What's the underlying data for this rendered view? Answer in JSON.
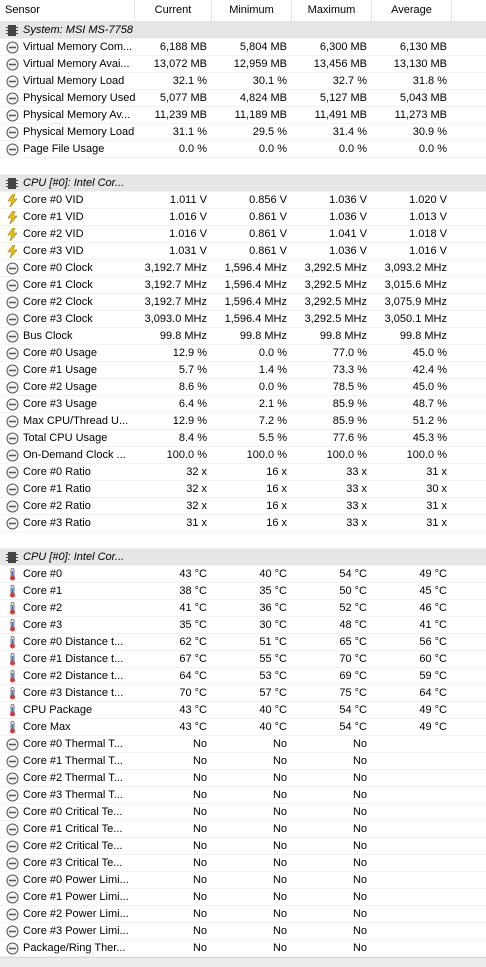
{
  "table": {
    "columns": [
      "Sensor",
      "Current",
      "Minimum",
      "Maximum",
      "Average"
    ],
    "sections": [
      {
        "title": "System: MSI MS-7758",
        "rows": [
          [
            "Virtual Memory Com...",
            "6,188 MB",
            "5,804 MB",
            "6,300 MB",
            "6,130 MB"
          ],
          [
            "Virtual Memory Avai...",
            "13,072 MB",
            "12,959 MB",
            "13,456 MB",
            "13,130 MB"
          ],
          [
            "Virtual Memory Load",
            "32.1 %",
            "30.1 %",
            "32.7 %",
            "31.8 %"
          ],
          [
            "Physical Memory Used",
            "5,077 MB",
            "4,824 MB",
            "5,127 MB",
            "5,043 MB"
          ],
          [
            "Physical Memory Av...",
            "11,239 MB",
            "11,189 MB",
            "11,491 MB",
            "11,273 MB"
          ],
          [
            "Physical Memory Load",
            "31.1 %",
            "29.5 %",
            "31.4 %",
            "30.9 %"
          ],
          [
            "Page File Usage",
            "0.0 %",
            "0.0 %",
            "0.0 %",
            "0.0 %"
          ]
        ]
      },
      {
        "title": "CPU [#0]: Intel Cor...",
        "rows": [
          [
            "Core #0 VID",
            "1.011 V",
            "0.856 V",
            "1.036 V",
            "1.020 V"
          ],
          [
            "Core #1 VID",
            "1.016 V",
            "0.861 V",
            "1.036 V",
            "1.013 V"
          ],
          [
            "Core #2 VID",
            "1.016 V",
            "0.861 V",
            "1.041 V",
            "1.018 V"
          ],
          [
            "Core #3 VID",
            "1.031 V",
            "0.861 V",
            "1.036 V",
            "1.016 V"
          ],
          [
            "Core #0 Clock",
            "3,192.7 MHz",
            "1,596.4 MHz",
            "3,292.5 MHz",
            "3,093.2 MHz"
          ],
          [
            "Core #1 Clock",
            "3,192.7 MHz",
            "1,596.4 MHz",
            "3,292.5 MHz",
            "3,015.6 MHz"
          ],
          [
            "Core #2 Clock",
            "3,192.7 MHz",
            "1,596.4 MHz",
            "3,292.5 MHz",
            "3,075.9 MHz"
          ],
          [
            "Core #3 Clock",
            "3,093.0 MHz",
            "1,596.4 MHz",
            "3,292.5 MHz",
            "3,050.1 MHz"
          ],
          [
            "Bus Clock",
            "99.8 MHz",
            "99.8 MHz",
            "99.8 MHz",
            "99.8 MHz"
          ],
          [
            "Core #0 Usage",
            "12.9 %",
            "0.0 %",
            "77.0 %",
            "45.0 %"
          ],
          [
            "Core #1 Usage",
            "5.7 %",
            "1.4 %",
            "73.3 %",
            "42.4 %"
          ],
          [
            "Core #2 Usage",
            "8.6 %",
            "0.0 %",
            "78.5 %",
            "45.0 %"
          ],
          [
            "Core #3 Usage",
            "6.4 %",
            "2.1 %",
            "85.9 %",
            "48.7 %"
          ],
          [
            "Max CPU/Thread U...",
            "12.9 %",
            "7.2 %",
            "85.9 %",
            "51.2 %"
          ],
          [
            "Total CPU Usage",
            "8.4 %",
            "5.5 %",
            "77.6 %",
            "45.3 %"
          ],
          [
            "On-Demand Clock ...",
            "100.0 %",
            "100.0 %",
            "100.0 %",
            "100.0 %"
          ],
          [
            "Core #0 Ratio",
            "32 x",
            "16 x",
            "33 x",
            "31 x"
          ],
          [
            "Core #1 Ratio",
            "32 x",
            "16 x",
            "33 x",
            "30 x"
          ],
          [
            "Core #2 Ratio",
            "32 x",
            "16 x",
            "33 x",
            "31 x"
          ],
          [
            "Core #3 Ratio",
            "31 x",
            "16 x",
            "33 x",
            "31 x"
          ]
        ]
      },
      {
        "title": "CPU [#0]: Intel Cor...",
        "rows": [
          [
            "Core #0",
            "43 °C",
            "40 °C",
            "54 °C",
            "49 °C"
          ],
          [
            "Core #1",
            "38 °C",
            "35 °C",
            "50 °C",
            "45 °C"
          ],
          [
            "Core #2",
            "41 °C",
            "36 °C",
            "52 °C",
            "46 °C"
          ],
          [
            "Core #3",
            "35 °C",
            "30 °C",
            "48 °C",
            "41 °C"
          ],
          [
            "Core #0 Distance t...",
            "62 °C",
            "51 °C",
            "65 °C",
            "56 °C"
          ],
          [
            "Core #1 Distance t...",
            "67 °C",
            "55 °C",
            "70 °C",
            "60 °C"
          ],
          [
            "Core #2 Distance t...",
            "64 °C",
            "53 °C",
            "69 °C",
            "59 °C"
          ],
          [
            "Core #3 Distance t...",
            "70 °C",
            "57 °C",
            "75 °C",
            "64 °C"
          ],
          [
            "CPU Package",
            "43 °C",
            "40 °C",
            "54 °C",
            "49 °C"
          ],
          [
            "Core Max",
            "43 °C",
            "40 °C",
            "54 °C",
            "49 °C"
          ],
          [
            "Core #0 Thermal T...",
            "No",
            "No",
            "No"
          ],
          [
            "Core #1 Thermal T...",
            "No",
            "No",
            "No"
          ],
          [
            "Core #2 Thermal T...",
            "No",
            "No",
            "No"
          ],
          [
            "Core #3 Thermal T...",
            "No",
            "No",
            "No"
          ],
          [
            "Core #0 Critical Te...",
            "No",
            "No",
            "No"
          ],
          [
            "Core #1 Critical Te...",
            "No",
            "No",
            "No"
          ],
          [
            "Core #2 Critical Te...",
            "No",
            "No",
            "No"
          ],
          [
            "Core #3 Critical Te...",
            "No",
            "No",
            "No"
          ],
          [
            "Core #0 Power Limi...",
            "No",
            "No",
            "No"
          ],
          [
            "Core #1 Power Limi...",
            "No",
            "No",
            "No"
          ],
          [
            "Core #2 Power Limi...",
            "No",
            "No",
            "No"
          ],
          [
            "Core #3 Power Limi...",
            "No",
            "No",
            "No"
          ],
          [
            "Package/Ring Ther...",
            "No",
            "No",
            "No"
          ]
        ]
      }
    ]
  }
}
